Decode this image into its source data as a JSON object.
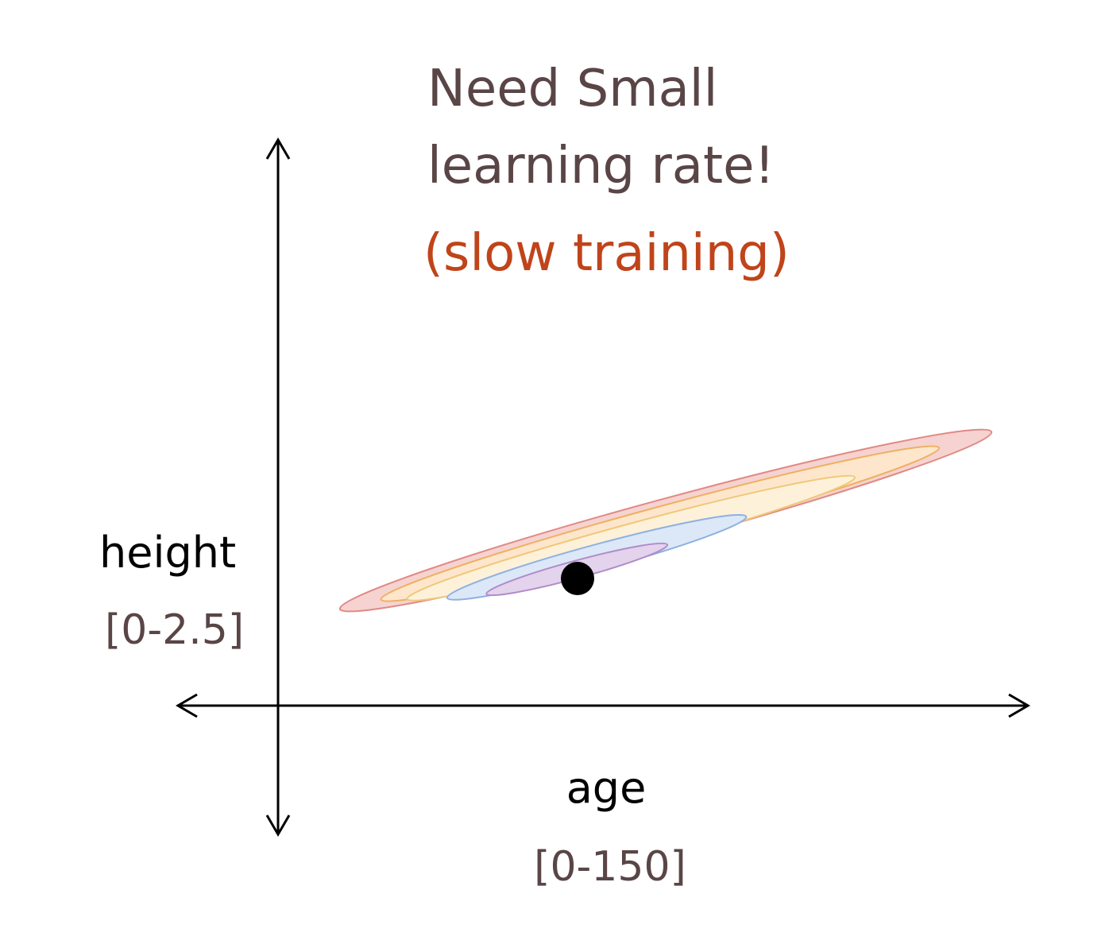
{
  "title": [
    "Need Small",
    "learning rate!"
  ],
  "subtitle": "(slow training)",
  "y_axis": {
    "label": "height",
    "range": "[0-2.5]"
  },
  "x_axis": {
    "label": "age",
    "range": "[0-150]"
  }
}
